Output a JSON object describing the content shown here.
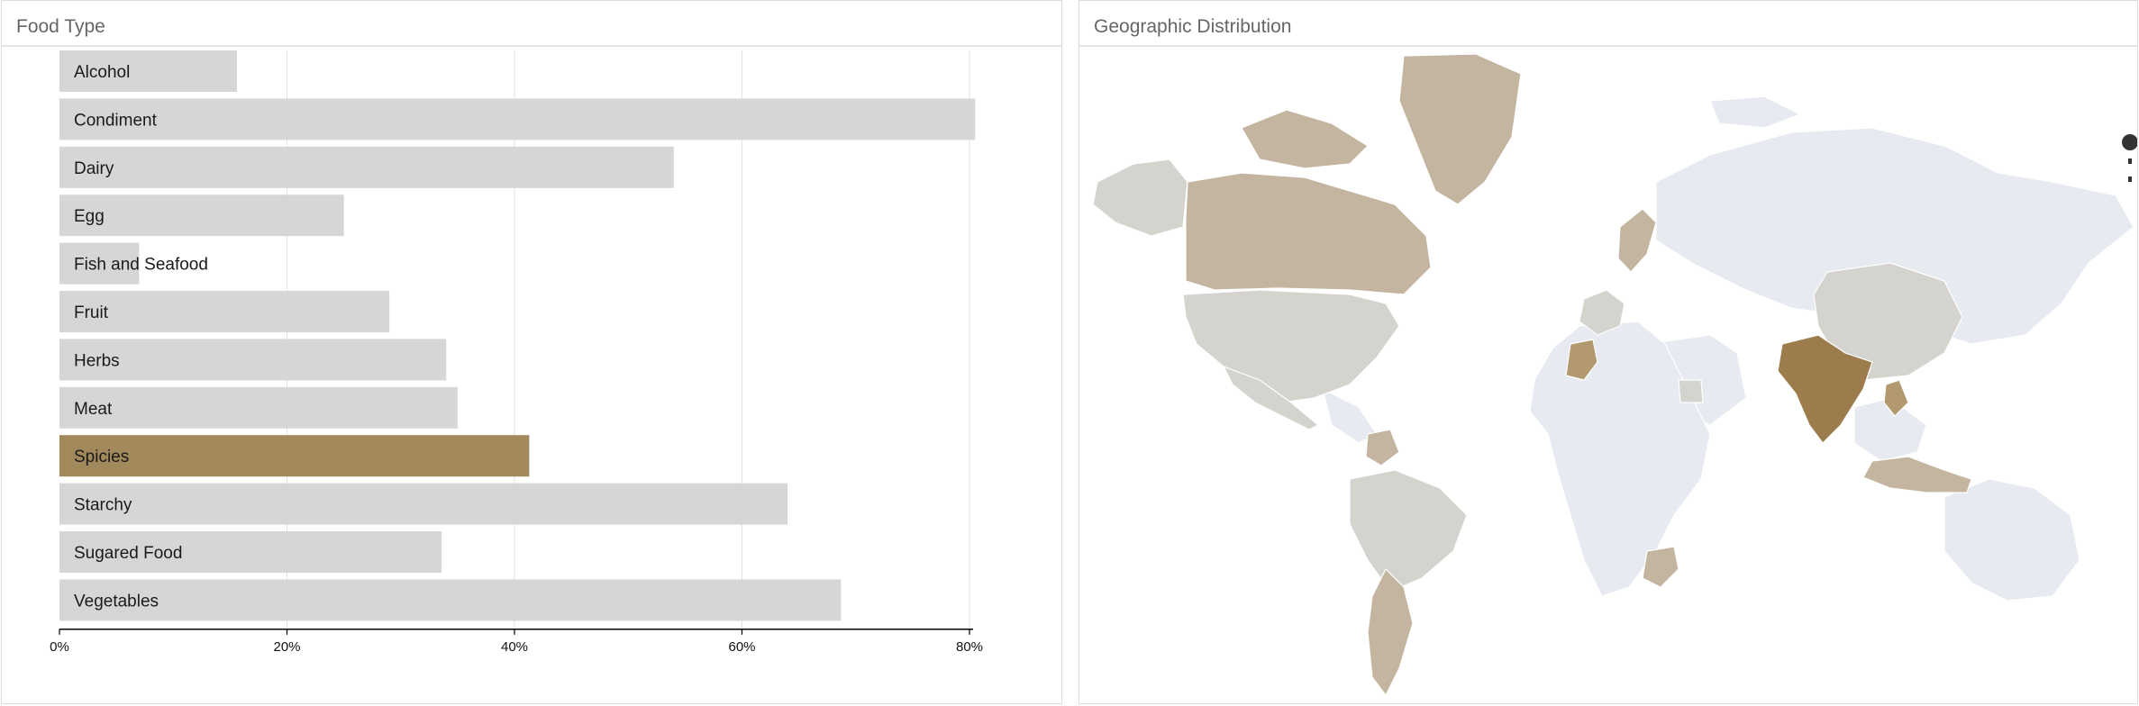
{
  "food_panel": {
    "title": "Food Type"
  },
  "geo_panel": {
    "title": "Geographic Distribution"
  },
  "colors": {
    "bar_default": "#d6d6d6",
    "bar_selected": "#a2895c",
    "gridline": "#e2e2e2",
    "axis": "#000000",
    "map_base": "#e8eaf1",
    "map_light": "#d5d3cd",
    "map_medium": "#c3b59f",
    "map_strong": "#b2996f",
    "map_darkest": "#9c7c4c"
  },
  "chart_data": {
    "type": "bar",
    "orientation": "horizontal",
    "categories": [
      "Alcohol",
      "Condiment",
      "Dairy",
      "Egg",
      "Fish and Seafood",
      "Fruit",
      "Herbs",
      "Meat",
      "Spicies",
      "Starchy",
      "Sugared Food",
      "Vegetables"
    ],
    "values": [
      15.6,
      80.5,
      54,
      25,
      7,
      29,
      34,
      35,
      41.3,
      64,
      33.6,
      68.7
    ],
    "selected": "Spicies",
    "xlim": [
      0,
      80
    ],
    "xticks": [
      0,
      20,
      40,
      60,
      80
    ],
    "tick_format": "%",
    "grid": true
  }
}
